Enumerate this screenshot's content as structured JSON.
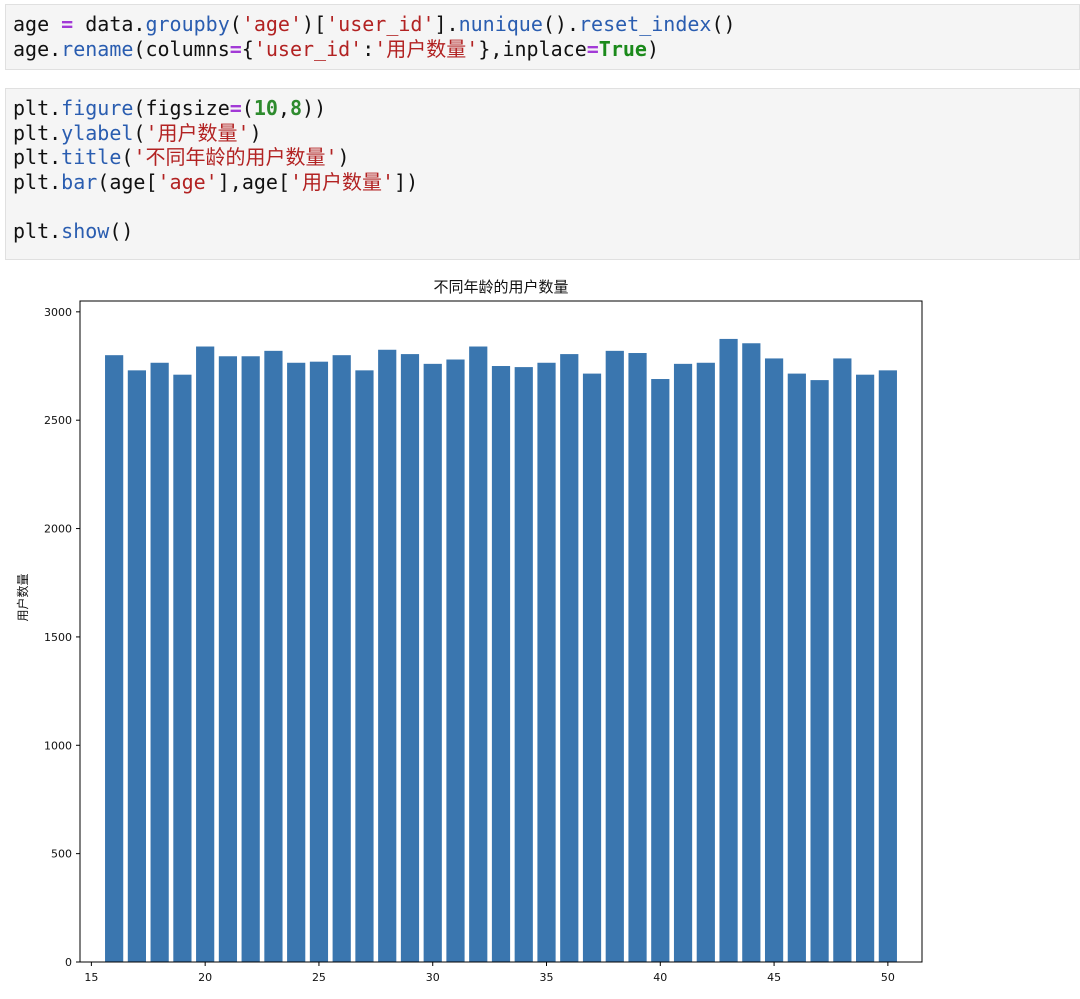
{
  "cells": [
    {
      "lines": [
        [
          [
            "t",
            "age "
          ],
          [
            "op",
            "="
          ],
          [
            "t",
            " data."
          ],
          [
            "fn",
            "groupby"
          ],
          [
            "t",
            "("
          ],
          [
            "str",
            "'age'"
          ],
          [
            "t",
            ")["
          ],
          [
            "str",
            "'user_id'"
          ],
          [
            "t",
            "]."
          ],
          [
            "fn",
            "nunique"
          ],
          [
            "t",
            "()."
          ],
          [
            "fn",
            "reset_index"
          ],
          [
            "t",
            "()"
          ]
        ],
        [
          [
            "t",
            "age."
          ],
          [
            "fn",
            "rename"
          ],
          [
            "t",
            "(columns"
          ],
          [
            "op",
            "="
          ],
          [
            "t",
            "{"
          ],
          [
            "str",
            "'user_id'"
          ],
          [
            "t",
            ":"
          ],
          [
            "str",
            "'用户数量'"
          ],
          [
            "t",
            "},inplace"
          ],
          [
            "op",
            "="
          ],
          [
            "kw",
            "True"
          ],
          [
            "t",
            ")"
          ]
        ]
      ]
    },
    {
      "lines": [
        [
          [
            "t",
            "plt."
          ],
          [
            "fn",
            "figure"
          ],
          [
            "t",
            "(figsize"
          ],
          [
            "op",
            "="
          ],
          [
            "t",
            "("
          ],
          [
            "num",
            "10"
          ],
          [
            "t",
            ","
          ],
          [
            "num",
            "8"
          ],
          [
            "t",
            "))"
          ]
        ],
        [
          [
            "t",
            "plt."
          ],
          [
            "fn",
            "ylabel"
          ],
          [
            "t",
            "("
          ],
          [
            "str",
            "'用户数量'"
          ],
          [
            "t",
            ")"
          ]
        ],
        [
          [
            "t",
            "plt."
          ],
          [
            "fn",
            "title"
          ],
          [
            "t",
            "("
          ],
          [
            "str",
            "'不同年龄的用户数量'"
          ],
          [
            "t",
            ")"
          ]
        ],
        [
          [
            "t",
            "plt."
          ],
          [
            "fn",
            "bar"
          ],
          [
            "t",
            "(age["
          ],
          [
            "str",
            "'age'"
          ],
          [
            "t",
            "],age["
          ],
          [
            "str",
            "'用户数量'"
          ],
          [
            "t",
            "])"
          ]
        ],
        [],
        [
          [
            "t",
            "plt."
          ],
          [
            "fn",
            "show"
          ],
          [
            "t",
            "()"
          ]
        ]
      ]
    }
  ],
  "chart_data": {
    "type": "bar",
    "title": "不同年龄的用户数量",
    "xlabel": "",
    "ylabel": "用户数量",
    "x": [
      16,
      17,
      18,
      19,
      20,
      21,
      22,
      23,
      24,
      25,
      26,
      27,
      28,
      29,
      30,
      31,
      32,
      33,
      34,
      35,
      36,
      37,
      38,
      39,
      40,
      41,
      42,
      43,
      44,
      45,
      46,
      47,
      48,
      49,
      50
    ],
    "values": [
      2800,
      2730,
      2765,
      2710,
      2840,
      2795,
      2795,
      2820,
      2765,
      2770,
      2800,
      2730,
      2825,
      2805,
      2760,
      2780,
      2840,
      2750,
      2745,
      2765,
      2805,
      2715,
      2820,
      2810,
      2690,
      2760,
      2765,
      2875,
      2855,
      2785,
      2715,
      2685,
      2785,
      2710,
      2730
    ],
    "xlim": [
      14.5,
      51.5
    ],
    "ylim": [
      0,
      3050
    ],
    "xticks": [
      15,
      20,
      25,
      30,
      35,
      40,
      45,
      50
    ],
    "yticks": [
      0,
      500,
      1000,
      1500,
      2000,
      2500,
      3000
    ],
    "bar_color": "#3a76af",
    "grid": false,
    "legend": "none"
  }
}
